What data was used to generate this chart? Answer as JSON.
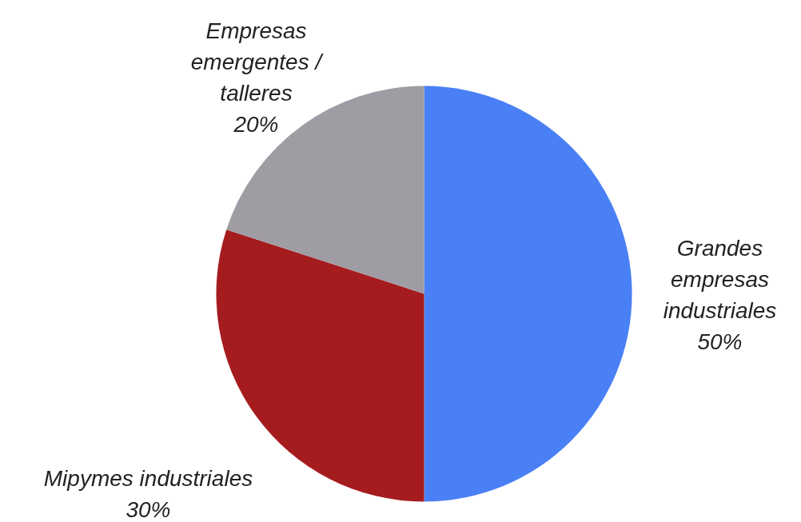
{
  "chart_data": {
    "type": "pie",
    "categories": [
      "Grandes empresas industriales",
      "Mipymes industriales",
      "Empresas emergentes / talleres"
    ],
    "values": [
      50,
      30,
      20
    ],
    "colors": [
      "#4a80f5",
      "#a51c1f",
      "#a09ca3"
    ],
    "value_labels": [
      "50%",
      "30%",
      "20%"
    ]
  }
}
